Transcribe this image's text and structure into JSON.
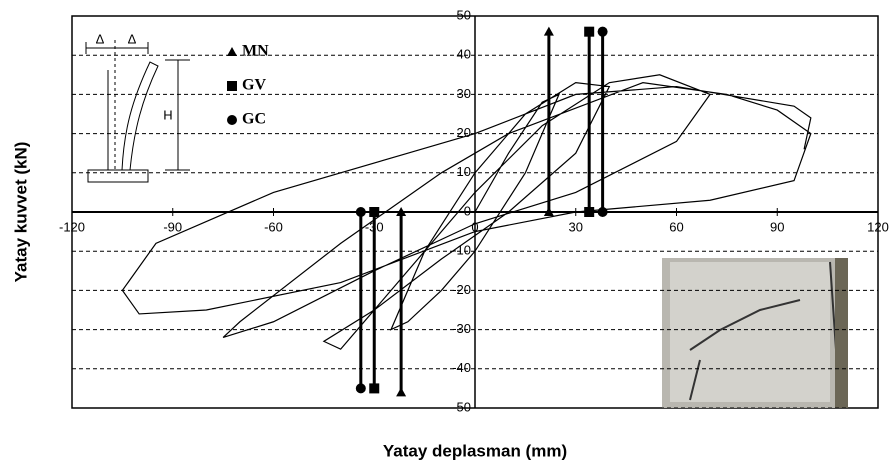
{
  "chart_data": {
    "type": "hysteresis",
    "xlabel": "Yatay deplasman (mm)",
    "ylabel": "Yatay kuvvet (kN)",
    "xlim": [
      -120,
      120
    ],
    "ylim": [
      -50,
      50
    ],
    "xticks": [
      -120,
      -90,
      -60,
      -30,
      0,
      30,
      60,
      90,
      120
    ],
    "yticks": [
      50,
      40,
      30,
      20,
      10,
      0,
      -10,
      -20,
      -30,
      -40,
      -50
    ],
    "grid": true,
    "annotations": [
      "Δ",
      "Δ",
      "H"
    ],
    "curve": {
      "color": "#000000",
      "x": [
        0,
        10,
        20,
        25,
        15,
        0,
        -10,
        -20,
        -25,
        -15,
        0,
        15,
        30,
        40,
        30,
        10,
        -10,
        -30,
        -45,
        -40,
        -25,
        0,
        20,
        40,
        55,
        70,
        60,
        30,
        0,
        -30,
        -60,
        -75,
        -70,
        -40,
        -10,
        10,
        50,
        75,
        90,
        100,
        95,
        70,
        30,
        0,
        -40,
        -80,
        -100,
        -105,
        -95,
        -60,
        -20,
        0,
        30,
        60,
        95,
        100,
        98
      ],
      "values": [
        0,
        15,
        28,
        30,
        10,
        -10,
        -20,
        -28,
        -30,
        -10,
        10,
        25,
        33,
        32,
        15,
        0,
        -12,
        -25,
        -33,
        -35,
        -20,
        5,
        22,
        33,
        35,
        30,
        18,
        5,
        -3,
        -15,
        -28,
        -32,
        -28,
        -8,
        10,
        20,
        33,
        30,
        26,
        20,
        8,
        3,
        0,
        -5,
        -18,
        -25,
        -26,
        -20,
        -8,
        5,
        15,
        20,
        30,
        32,
        27,
        24,
        16
      ]
    },
    "series": [
      {
        "name": "MN",
        "marker": "triangle",
        "color": "#000000",
        "x": [
          22,
          -22
        ],
        "values": [
          46,
          -46
        ]
      },
      {
        "name": "GV",
        "marker": "square",
        "color": "#000000",
        "x": [
          34,
          -30
        ],
        "values": [
          46,
          -45
        ]
      },
      {
        "name": "GC",
        "marker": "circle",
        "color": "#000000",
        "x": [
          38,
          -34
        ],
        "values": [
          46,
          -45
        ]
      }
    ]
  }
}
